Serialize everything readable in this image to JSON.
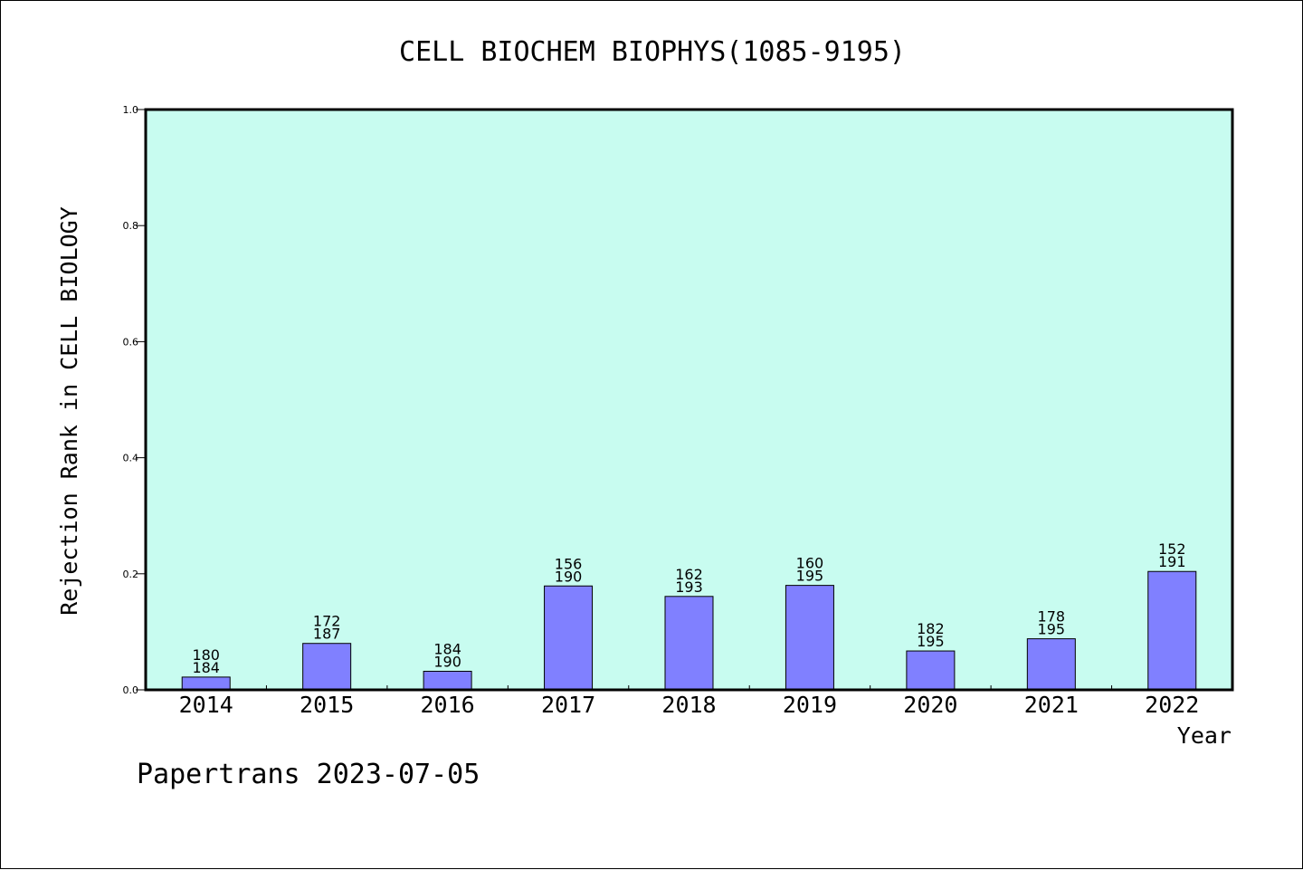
{
  "chart_data": {
    "type": "bar",
    "title": "CELL BIOCHEM BIOPHYS(1085-9195)",
    "xlabel": "Year",
    "ylabel": "Rejection Rank in CELL BIOLOGY",
    "ylim": [
      0,
      1.0
    ],
    "yticks": [
      "0.0",
      "0.2",
      "0.4",
      "0.6",
      "0.8",
      "1.0"
    ],
    "categories": [
      "2014",
      "2015",
      "2016",
      "2017",
      "2018",
      "2019",
      "2020",
      "2021",
      "2022"
    ],
    "values": [
      0.022,
      0.08,
      0.032,
      0.179,
      0.161,
      0.18,
      0.067,
      0.088,
      0.204
    ],
    "labels_top": [
      "180",
      "172",
      "184",
      "156",
      "162",
      "160",
      "182",
      "178",
      "152"
    ],
    "labels_bottom": [
      "184",
      "187",
      "190",
      "190",
      "193",
      "195",
      "195",
      "195",
      "191"
    ],
    "grid": false,
    "colors": {
      "plot_bg": "#c8fcf0",
      "bar_fill": "#8080ff",
      "bar_stroke": "#000000"
    }
  },
  "footer": {
    "text": "Papertrans 2023-07-05"
  }
}
